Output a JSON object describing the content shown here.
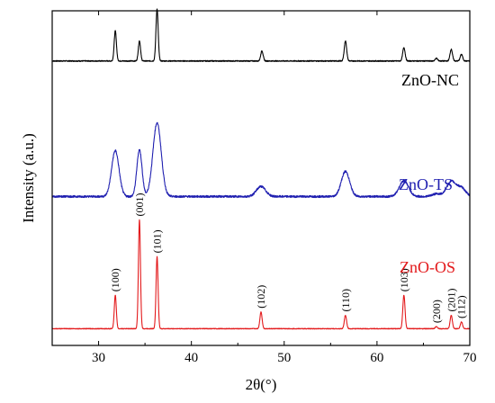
{
  "chart_data": {
    "type": "line",
    "xlabel": "2θ(°)",
    "ylabel": "Intensity (a.u.)",
    "xlim": [
      25,
      70
    ],
    "x_ticks": [
      30,
      40,
      50,
      60,
      70
    ],
    "y_ticks_shown": false,
    "grid": false,
    "legend": "inline labels at right of each trace",
    "series": [
      {
        "name": "ZnO-NC",
        "color": "#000000",
        "baseline": 0.85,
        "noise": 0.0015,
        "peaks": [
          {
            "x": 31.8,
            "h": 0.09,
            "w": 0.12
          },
          {
            "x": 34.4,
            "h": 0.06,
            "w": 0.12
          },
          {
            "x": 36.3,
            "h": 0.155,
            "w": 0.12
          },
          {
            "x": 47.6,
            "h": 0.03,
            "w": 0.13
          },
          {
            "x": 56.6,
            "h": 0.06,
            "w": 0.13
          },
          {
            "x": 62.9,
            "h": 0.04,
            "w": 0.13
          },
          {
            "x": 66.4,
            "h": 0.008,
            "w": 0.13
          },
          {
            "x": 68.0,
            "h": 0.035,
            "w": 0.13
          },
          {
            "x": 69.1,
            "h": 0.02,
            "w": 0.13
          }
        ]
      },
      {
        "name": "ZnO-TS",
        "color": "#1f1fb0",
        "baseline": 0.445,
        "noise": 0.003,
        "peaks": [
          {
            "x": 31.8,
            "h": 0.137,
            "w": 0.4
          },
          {
            "x": 34.4,
            "h": 0.14,
            "w": 0.28
          },
          {
            "x": 36.3,
            "h": 0.22,
            "w": 0.45
          },
          {
            "x": 47.5,
            "h": 0.03,
            "w": 0.5
          },
          {
            "x": 56.6,
            "h": 0.075,
            "w": 0.45
          },
          {
            "x": 62.9,
            "h": 0.047,
            "w": 0.5
          },
          {
            "x": 66.4,
            "h": 0.008,
            "w": 0.45
          },
          {
            "x": 68.0,
            "h": 0.045,
            "w": 0.5
          },
          {
            "x": 69.1,
            "h": 0.025,
            "w": 0.45
          }
        ]
      },
      {
        "name": "ZnO-OS",
        "color": "#e31a1c",
        "baseline": 0.05,
        "noise": 0.001,
        "peaks": [
          {
            "x": 31.8,
            "h": 0.1,
            "w": 0.11,
            "label": "(100)"
          },
          {
            "x": 34.4,
            "h": 0.325,
            "w": 0.11,
            "label": "(001)"
          },
          {
            "x": 36.3,
            "h": 0.215,
            "w": 0.11,
            "label": "(101)"
          },
          {
            "x": 47.5,
            "h": 0.05,
            "w": 0.12,
            "label": "(102)"
          },
          {
            "x": 56.6,
            "h": 0.04,
            "w": 0.12,
            "label": "(110)"
          },
          {
            "x": 62.9,
            "h": 0.1,
            "w": 0.12,
            "label": "(103)"
          },
          {
            "x": 66.4,
            "h": 0.006,
            "w": 0.12,
            "label": "(200)"
          },
          {
            "x": 68.0,
            "h": 0.04,
            "w": 0.12,
            "label": "(201)"
          },
          {
            "x": 69.1,
            "h": 0.02,
            "w": 0.12,
            "label": "(112)"
          }
        ]
      }
    ]
  }
}
